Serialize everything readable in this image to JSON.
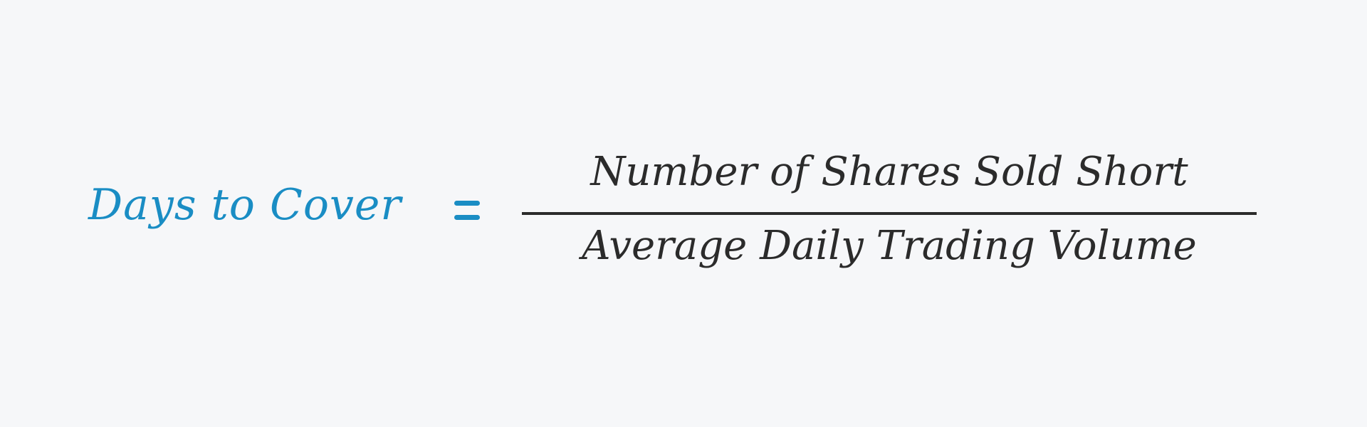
{
  "formula": {
    "lhs": "Days to Cover",
    "numerator": "Number of Shares Sold Short",
    "denominator": "Average Daily Trading Volume"
  },
  "colors": {
    "background": "#f6f7f9",
    "accent": "#1a8dc4",
    "ink": "#2b2b2b"
  }
}
